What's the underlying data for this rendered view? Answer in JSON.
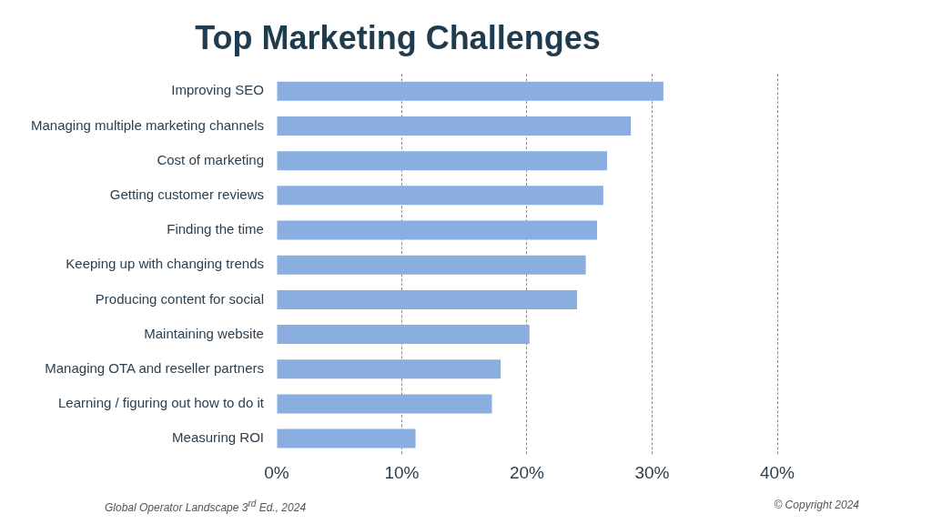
{
  "chart_data": {
    "type": "bar",
    "orientation": "horizontal",
    "title": "Top Marketing Challenges",
    "categories": [
      "Improving SEO",
      "Managing multiple marketing channels",
      "Cost of marketing",
      "Getting customer reviews",
      "Finding the time",
      "Keeping up with changing trends",
      "Producing content for social",
      "Maintaining website",
      "Managing OTA and reseller partners",
      "Learning / figuring out how to do it",
      "Measuring ROI"
    ],
    "values": [
      30.9,
      28.3,
      26.4,
      26.1,
      25.6,
      24.7,
      24.0,
      20.2,
      17.9,
      17.2,
      11.1
    ],
    "color": "#8aaee0",
    "xlim": [
      0,
      40
    ],
    "xticks": [
      {
        "value": 0,
        "label": "0%"
      },
      {
        "value": 10,
        "label": "10%"
      },
      {
        "value": 20,
        "label": "20%"
      },
      {
        "value": 30,
        "label": "30%"
      },
      {
        "value": 40,
        "label": "40%"
      }
    ],
    "grid": "x",
    "annotations": [
      "Global Operator Landscape 3$^{rd}$ Ed., 2024",
      "© Copyright 2024"
    ]
  }
}
